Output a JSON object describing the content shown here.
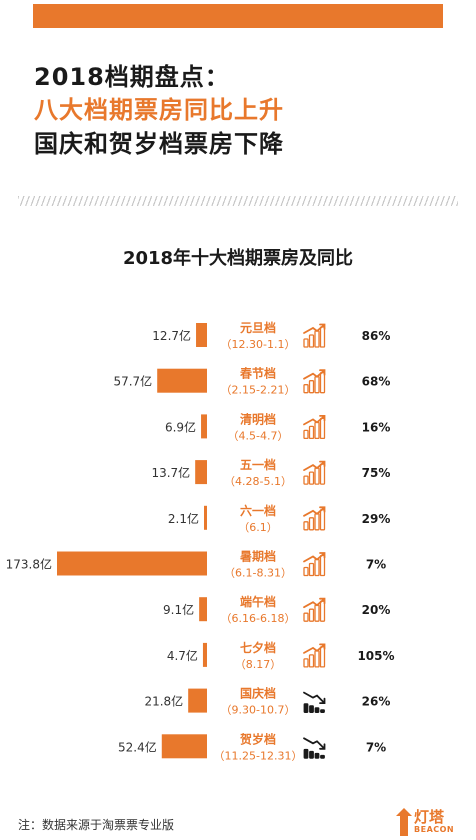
{
  "header": {
    "line1": "2018档期盘点：",
    "line2": "八大档期票房同比上升",
    "line3": "国庆和贺岁档票房下降"
  },
  "colors": {
    "accent": "#e8782c",
    "dark": "#1a1a1a"
  },
  "chart_data": {
    "type": "bar",
    "title": "2018年十大档期票房及同比",
    "unit": "亿",
    "categories": [
      "元旦档",
      "春节档",
      "清明档",
      "五一档",
      "六一档",
      "暑期档",
      "端午档",
      "七夕档",
      "国庆档",
      "贺岁档"
    ],
    "date_ranges": [
      "12.30-1.1",
      "2.15-2.21",
      "4.5-4.7",
      "4.28-5.1",
      "6.1",
      "6.1-8.31",
      "6.16-6.18",
      "8.17",
      "9.30-10.7",
      "11.25-12.31"
    ],
    "values": [
      12.7,
      57.7,
      6.9,
      13.7,
      2.1,
      173.8,
      9.1,
      4.7,
      21.8,
      52.4
    ],
    "value_labels": [
      "12.7亿",
      "57.7亿",
      "6.9亿",
      "13.7亿",
      "2.1亿",
      "173.8亿",
      "9.1亿",
      "4.7亿",
      "21.8亿",
      "52.4亿"
    ],
    "yoy_labels": [
      "86%",
      "68%",
      "16%",
      "75%",
      "29%",
      "7%",
      "20%",
      "105%",
      "26%",
      "7%"
    ],
    "trend": [
      "up",
      "up",
      "up",
      "up",
      "up",
      "up",
      "up",
      "up",
      "down",
      "down"
    ],
    "trend_icons": [
      "trend-up-icon",
      "trend-up-icon",
      "trend-up-icon",
      "trend-up-icon",
      "trend-up-icon",
      "trend-up-icon",
      "trend-up-icon",
      "trend-up-icon",
      "trend-down-icon",
      "trend-down-icon"
    ]
  },
  "footer": {
    "note": "注：数据来源于淘票票专业版",
    "logo_text": "灯塔",
    "logo_sub": "BEACON"
  }
}
